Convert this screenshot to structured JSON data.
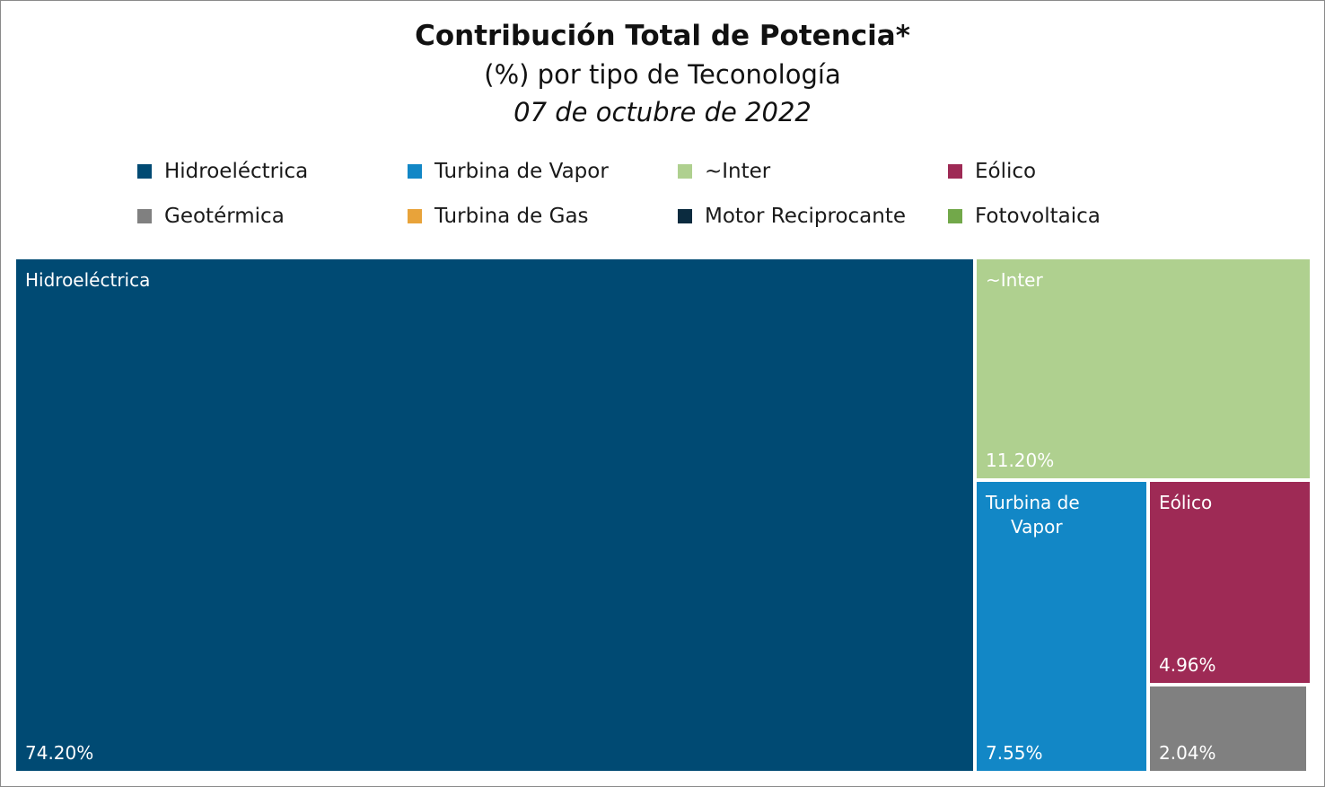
{
  "chart_data": {
    "type": "treemap",
    "title": "Contribución Total de Potencia*",
    "subtitle": "(%) por tipo de Teconología",
    "date": "07 de octubre de 2022",
    "unit": "%",
    "legend": [
      {
        "name": "Hidroeléctrica",
        "color": "#004a73"
      },
      {
        "name": "Turbina de Vapor",
        "color": "#1287c6"
      },
      {
        "name": "~Inter",
        "color": "#afd08f"
      },
      {
        "name": "Eólico",
        "color": "#9e2a55"
      },
      {
        "name": "Geotérmica",
        "color": "#808080"
      },
      {
        "name": "Turbina de Gas",
        "color": "#e8a33a"
      },
      {
        "name": "Motor Reciprocante",
        "color": "#0b2b3f"
      },
      {
        "name": "Fotovoltaica",
        "color": "#72a84a"
      }
    ],
    "values": [
      {
        "name": "Hidroeléctrica",
        "label": "Hidroeléctrica",
        "value": 74.2,
        "value_label": "74.20%",
        "color": "#004a73"
      },
      {
        "name": "~Inter",
        "label": "~Inter",
        "value": 11.2,
        "value_label": "11.20%",
        "color": "#afd08f"
      },
      {
        "name": "Turbina de Vapor",
        "label_lines": [
          "Turbina de",
          "Vapor"
        ],
        "value": 7.55,
        "value_label": "7.55%",
        "color": "#1287c6"
      },
      {
        "name": "Eólico",
        "label": "Eólico",
        "value": 4.96,
        "value_label": "4.96%",
        "color": "#9e2a55"
      },
      {
        "name": "Geotérmica",
        "label": "",
        "value": 2.04,
        "value_label": "2.04%",
        "color": "#808080"
      }
    ]
  }
}
